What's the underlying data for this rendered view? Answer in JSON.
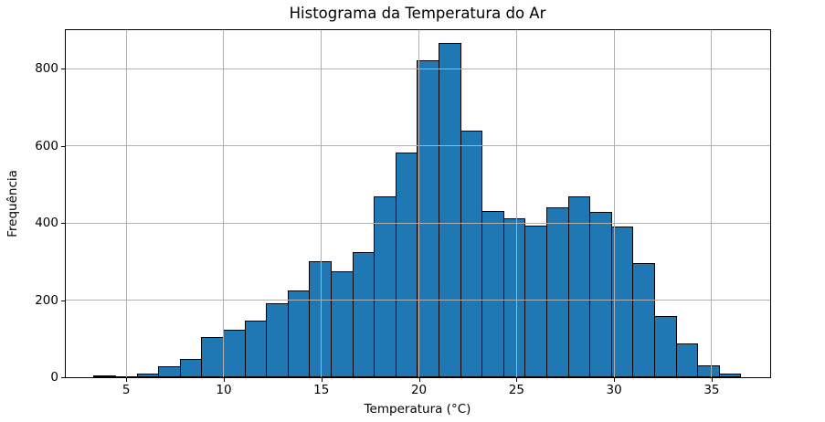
{
  "chart_data": {
    "type": "bar",
    "subtype": "histogram",
    "title": "Histograma da Temperatura do Ar",
    "xlabel": "Temperatura (°C)",
    "ylabel": "Frequência",
    "grid": true,
    "legend": false,
    "bar_color": "#1f77b4",
    "bar_edge_color": "#000000",
    "grid_color": "#b0b0b0",
    "background_color": "#ffffff",
    "xlim": [
      1.9,
      38.0
    ],
    "ylim": [
      0,
      900
    ],
    "x_ticks": [
      5,
      10,
      15,
      20,
      25,
      30,
      35
    ],
    "y_ticks": [
      0,
      200,
      400,
      600,
      800
    ],
    "bin_edges": [
      3.32,
      4.43,
      5.53,
      6.64,
      7.74,
      8.85,
      9.95,
      11.06,
      12.16,
      13.27,
      14.37,
      15.48,
      16.58,
      17.69,
      18.79,
      19.9,
      21.0,
      22.11,
      23.21,
      24.32,
      25.42,
      26.53,
      27.63,
      28.74,
      29.84,
      30.95,
      32.05,
      33.16,
      34.26,
      35.37,
      36.47
    ],
    "frequencies": [
      5,
      2,
      10,
      28,
      48,
      104,
      124,
      147,
      192,
      224,
      300,
      275,
      324,
      470,
      583,
      822,
      866,
      639,
      432,
      413,
      392,
      441,
      470,
      428,
      390,
      295,
      158,
      87,
      30,
      10
    ]
  }
}
